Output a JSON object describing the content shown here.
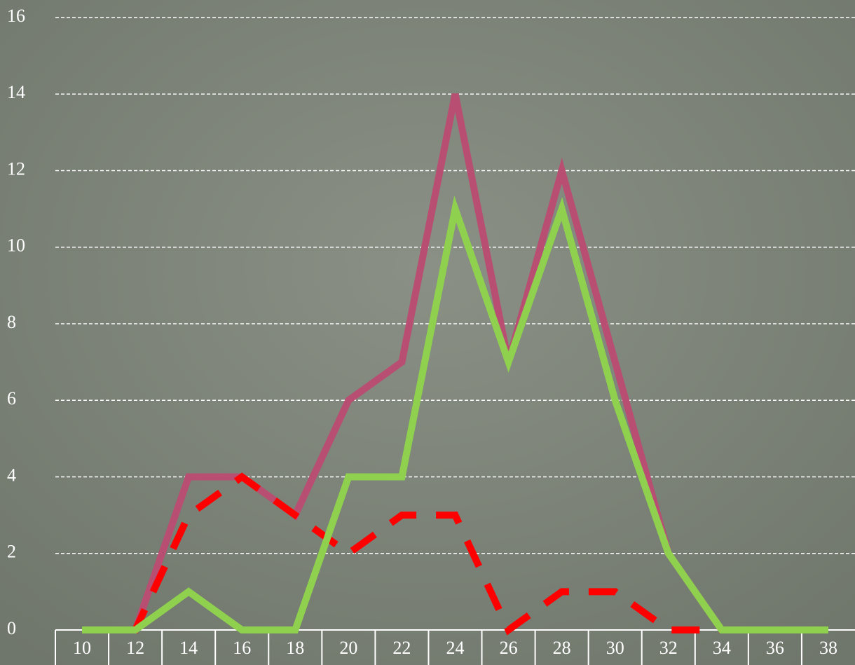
{
  "chart_data": {
    "type": "line",
    "categories": [
      "10",
      "12",
      "14",
      "16",
      "18",
      "20",
      "22",
      "24",
      "26",
      "28",
      "30",
      "32",
      "34",
      "36",
      "38"
    ],
    "series": [
      {
        "color": "#b84f73",
        "line_style": "solid",
        "values": [
          0,
          0,
          4,
          4,
          3,
          6,
          7,
          14,
          7,
          12,
          7,
          2,
          0,
          0,
          0
        ]
      },
      {
        "color": "#ff0000",
        "line_style": "dashed",
        "values": [
          0,
          0,
          3,
          4,
          3,
          2,
          3,
          3,
          0,
          1,
          1,
          0,
          0,
          0,
          0
        ]
      },
      {
        "color": "#8fd14f",
        "line_style": "solid",
        "values": [
          0,
          0,
          1,
          0,
          0,
          4,
          4,
          11,
          7,
          11,
          6,
          2,
          0,
          0,
          0
        ]
      }
    ],
    "ylim": [
      0,
      16
    ],
    "yticks": [
      0,
      2,
      4,
      6,
      8,
      10,
      12,
      14,
      16
    ],
    "grid": true
  }
}
